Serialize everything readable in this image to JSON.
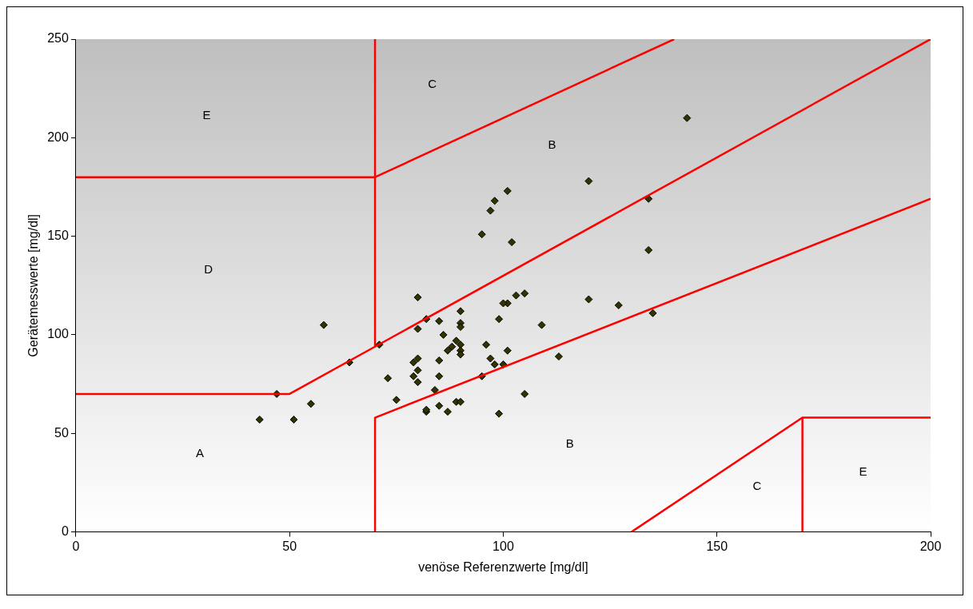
{
  "chart_data": {
    "type": "scatter",
    "xlabel": "venöse Referenzwerte [mg/dl]",
    "ylabel": "Gerätemesswerte [mg/dl]",
    "xlim": [
      0,
      200
    ],
    "ylim": [
      0,
      250
    ],
    "xticks": [
      0,
      50,
      100,
      150,
      200
    ],
    "yticks": [
      0,
      50,
      100,
      150,
      200,
      250
    ],
    "grid": false,
    "legend": false,
    "series": [
      {
        "color": "#333300",
        "marker": "diamond",
        "x": [
          43,
          47,
          51,
          55,
          58,
          64,
          71,
          73,
          75,
          80,
          80,
          80,
          79,
          80,
          79,
          80,
          82,
          82,
          85,
          85,
          85,
          84,
          87,
          85,
          86,
          87,
          88,
          89,
          82,
          89,
          90,
          90,
          90,
          90,
          90,
          90,
          90,
          95,
          96,
          97,
          98,
          99,
          100,
          101,
          101,
          100,
          103,
          105,
          105,
          109,
          113,
          95,
          99,
          120,
          120,
          127,
          134,
          134,
          135,
          143,
          102,
          101,
          98,
          97
        ],
        "values": [
          57,
          70,
          57,
          65,
          105,
          86,
          95,
          78,
          67,
          119,
          103,
          88,
          86,
          76,
          79,
          82,
          108,
          61,
          107,
          87,
          79,
          72,
          61,
          64,
          100,
          92,
          94,
          66,
          62,
          97,
          112,
          106,
          104,
          95,
          92,
          90,
          66,
          151,
          95,
          88,
          85,
          60,
          85,
          92,
          116,
          116,
          120,
          121,
          70,
          105,
          89,
          79,
          108,
          178,
          118,
          115,
          169,
          143,
          111,
          210,
          147,
          173,
          168,
          163
        ]
      },
      {
        "type": "line",
        "color": "#ff0000",
        "marker": "none",
        "line_style": "solid",
        "x": [
          0,
          50,
          70,
          200
        ],
        "values": [
          70,
          70,
          94,
          250
        ]
      },
      {
        "type": "line",
        "color": "#ff0000",
        "marker": "none",
        "line_style": "solid",
        "x": [
          70,
          70
        ],
        "values": [
          94,
          250
        ]
      },
      {
        "type": "line",
        "color": "#ff0000",
        "marker": "none",
        "line_style": "solid",
        "x": [
          0,
          70,
          140
        ],
        "values": [
          180,
          180,
          250
        ]
      },
      {
        "type": "line",
        "color": "#ff0000",
        "marker": "none",
        "line_style": "solid",
        "x": [
          70,
          70,
          200
        ],
        "values": [
          0,
          58,
          169
        ]
      },
      {
        "type": "line",
        "color": "#ff0000",
        "marker": "none",
        "line_style": "solid",
        "x": [
          130,
          170,
          200
        ],
        "values": [
          0,
          58,
          58
        ]
      },
      {
        "type": "line",
        "color": "#ff0000",
        "marker": "none",
        "line_style": "solid",
        "x": [
          170,
          170
        ],
        "values": [
          0,
          58
        ]
      }
    ],
    "annotations": [
      "E",
      "C",
      "B",
      "D",
      "A",
      "B",
      "C",
      "E"
    ]
  }
}
